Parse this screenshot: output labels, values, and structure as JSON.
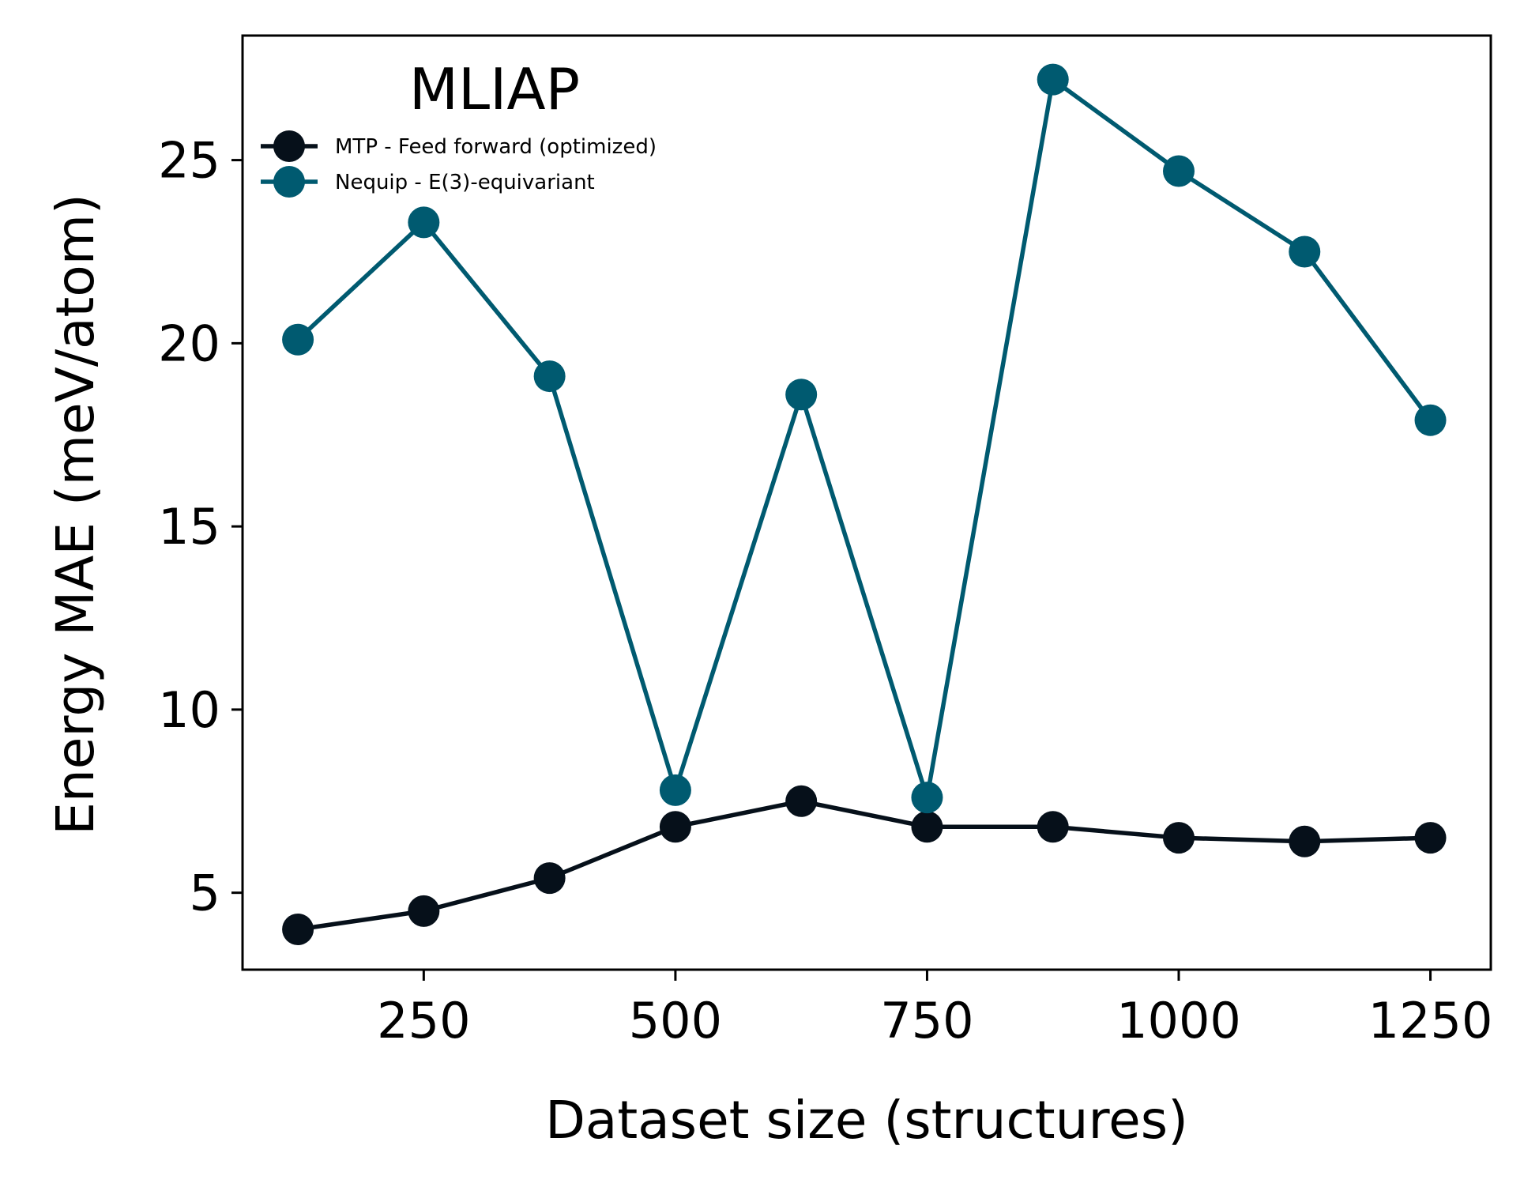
{
  "chart_data": {
    "type": "line",
    "title": "MLIAP",
    "xlabel": "Dataset size (structures)",
    "ylabel": "Energy MAE (meV/atom)",
    "xlim": [
      70,
      1310
    ],
    "ylim": [
      2.9,
      28.4
    ],
    "xticks": [
      250,
      500,
      750,
      1000,
      1250
    ],
    "yticks": [
      5,
      10,
      15,
      20,
      25
    ],
    "grid": false,
    "legend_position": "top-left",
    "x": [
      125,
      250,
      375,
      500,
      625,
      750,
      875,
      1000,
      1125,
      1250
    ],
    "series": [
      {
        "name": "MTP - Feed forward (optimized)",
        "color": "#06101a",
        "values": [
          4.0,
          4.5,
          5.4,
          6.8,
          7.5,
          6.8,
          6.8,
          6.5,
          6.4,
          6.5
        ]
      },
      {
        "name": "Nequip - E(3)-equivariant",
        "color": "#005a70",
        "values": [
          20.1,
          23.3,
          19.1,
          7.8,
          18.6,
          7.6,
          27.2,
          24.7,
          22.5,
          17.9
        ]
      }
    ]
  }
}
